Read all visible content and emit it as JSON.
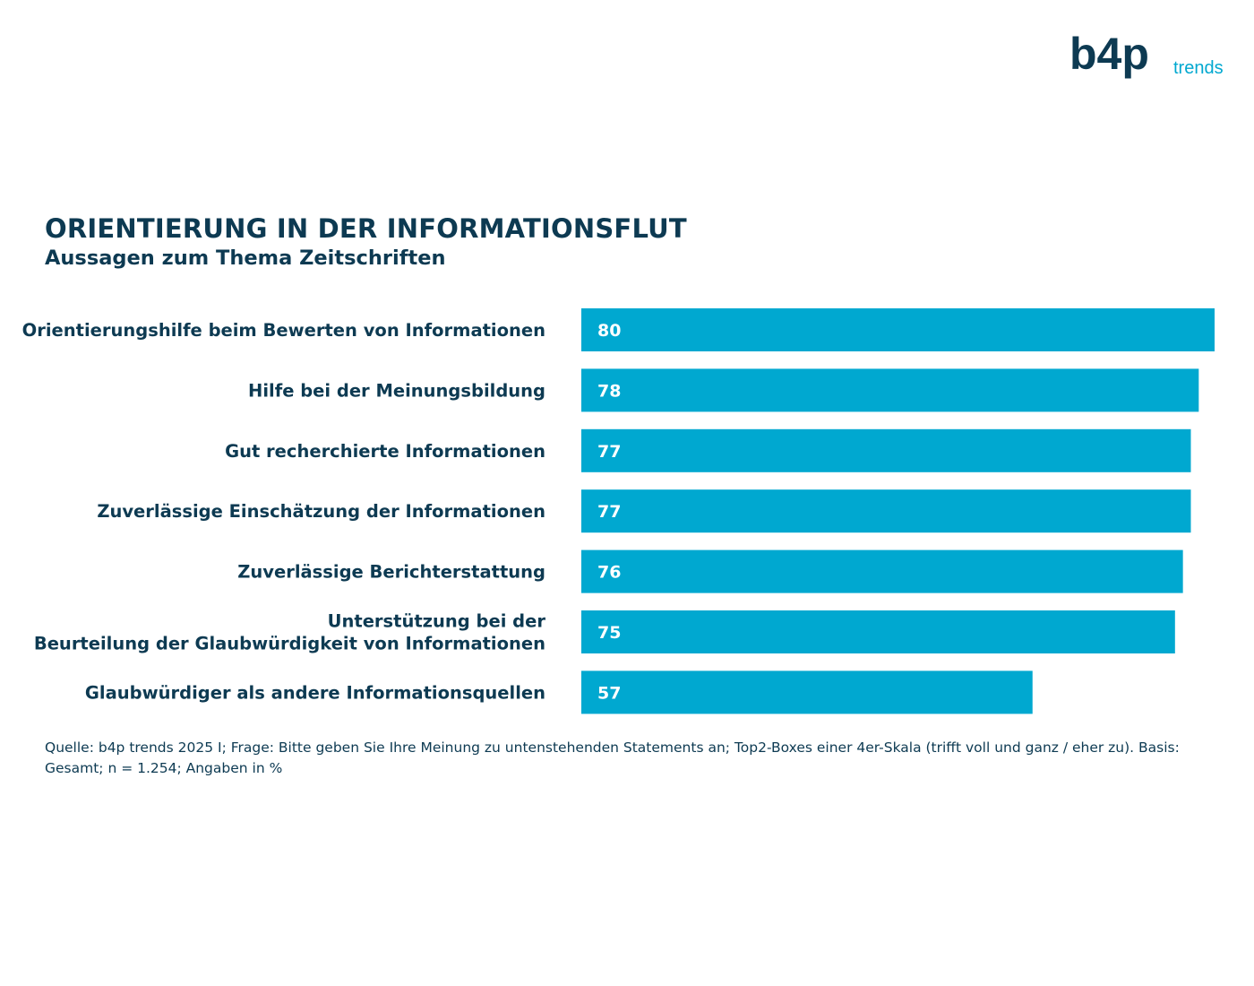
{
  "logo": {
    "primary": "b4p",
    "secondary": "trends",
    "colors": {
      "dark": "#0d3a52",
      "accent": "#00a8d0"
    }
  },
  "header": {
    "title": "ORIENTIERUNG IN DER INFORMATIONSFLUT",
    "subtitle": "Aussagen zum Thema Zeitschriften"
  },
  "chart_data": {
    "type": "bar",
    "orientation": "horizontal",
    "title": "ORIENTIERUNG IN DER INFORMATIONSFLUT",
    "subtitle": "Aussagen zum Thema Zeitschriften",
    "categories": [
      "Orientierungshilfe beim Bewerten von Informationen",
      "Hilfe bei der Meinungsbildung",
      "Gut recherchierte Informationen",
      "Zuverlässige Einschätzung der Informationen",
      "Zuverlässige Berichterstattung",
      "Unterstützung bei der Beurteilung der Glaubwürdigkeit von Informationen",
      "Glaubwürdiger als andere Informationsquellen"
    ],
    "values": [
      80,
      78,
      77,
      77,
      76,
      75,
      57
    ],
    "grid": false,
    "legend": "none",
    "colors": {
      "bar": "#00a8d0",
      "label": "#0d3a52",
      "value_label": "#ffffff"
    }
  },
  "source": {
    "text": "Quelle: b4p trends 2025 I; Frage: Bitte geben Sie Ihre Meinung zu untenstehenden Statements an; Top2-Boxes einer 4er-Skala (trifft voll und ganz / eher zu). Basis: Gesamt; n = 1.254; Angaben in %"
  }
}
